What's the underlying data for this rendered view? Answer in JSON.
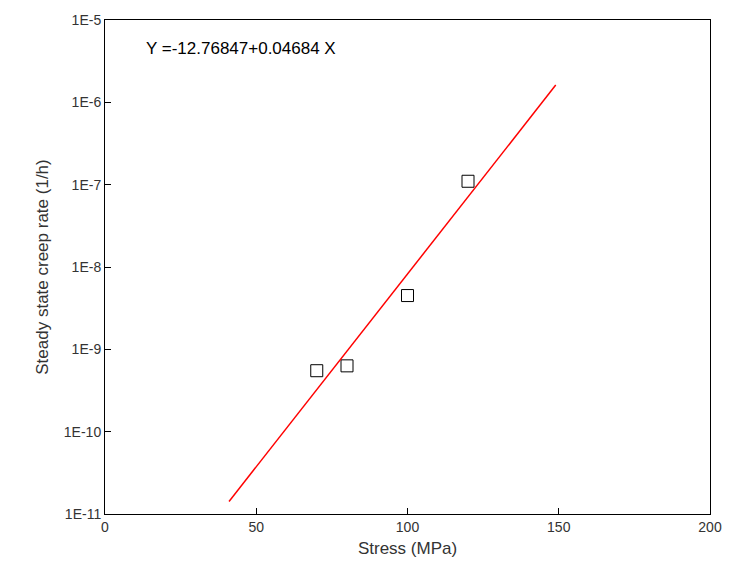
{
  "chart_data": {
    "type": "scatter",
    "xlabel": "Stress (MPa)",
    "ylabel": "Steady state creep rate (1/h)",
    "annotations": [
      "Y =-12.76847+0.04684 X"
    ],
    "log": "y",
    "grid": false,
    "xlim": [
      0,
      200
    ],
    "xticks": [
      0,
      50,
      100,
      150,
      200
    ],
    "ylim": [
      1e-11,
      1e-05
    ],
    "yticks": [
      {
        "value": 1e-11,
        "label": "1E-11"
      },
      {
        "value": 1e-10,
        "label": "1E-10"
      },
      {
        "value": 1e-09,
        "label": "1E-9"
      },
      {
        "value": 1e-08,
        "label": "1E-8"
      },
      {
        "value": 1e-07,
        "label": "1E-7"
      },
      {
        "value": 1e-06,
        "label": "1E-6"
      },
      {
        "value": 1e-05,
        "label": "1E-5"
      }
    ],
    "series": [
      {
        "type": "scatter",
        "marker": "square-open",
        "color": "#000000",
        "x": [
          70,
          80,
          100,
          120
        ],
        "values": [
          5.5e-10,
          6.3e-10,
          4.5e-09,
          1.1e-07
        ]
      },
      {
        "type": "line",
        "line_style": "solid",
        "color": "#ff0000",
        "x": [
          41,
          149
        ],
        "values": [
          1.42e-11,
          1.62e-06
        ]
      }
    ]
  }
}
